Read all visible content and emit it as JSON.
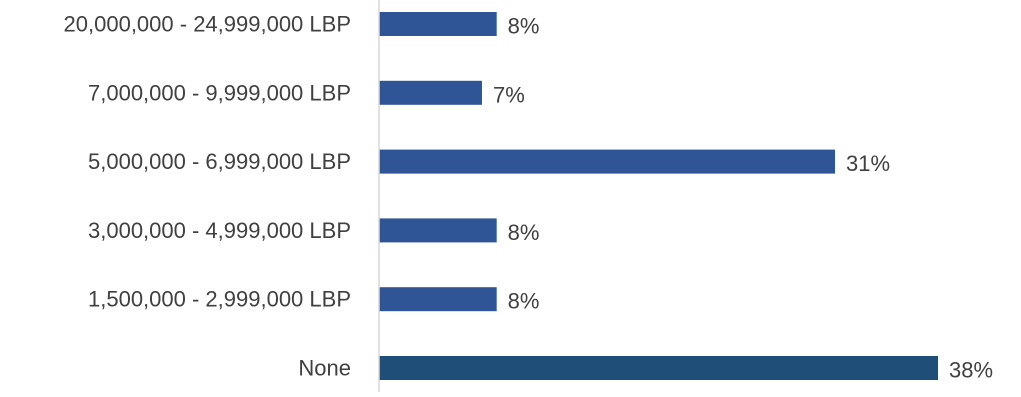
{
  "chart_data": {
    "type": "bar",
    "orientation": "horizontal",
    "categories": [
      "20,000,000 - 24,999,000 LBP",
      "7,000,000 - 9,999,000 LBP",
      "5,000,000 - 6,999,000 LBP",
      "3,000,000 - 4,999,000 LBP",
      "1,500,000 - 2,999,000 LBP",
      "None"
    ],
    "values": [
      8,
      7,
      31,
      8,
      8,
      38
    ],
    "value_labels": [
      "8%",
      "7%",
      "31%",
      "8%",
      "8%",
      "38%"
    ],
    "unit": "%",
    "xlim": [
      0,
      38
    ],
    "grid": false,
    "legend": "none",
    "colors": [
      "#2F5597",
      "#2F5597",
      "#2F5597",
      "#2F5597",
      "#2F5597",
      "#1F4E79"
    ],
    "axis_color": "#D9D9D9",
    "label_color": "#404040"
  }
}
